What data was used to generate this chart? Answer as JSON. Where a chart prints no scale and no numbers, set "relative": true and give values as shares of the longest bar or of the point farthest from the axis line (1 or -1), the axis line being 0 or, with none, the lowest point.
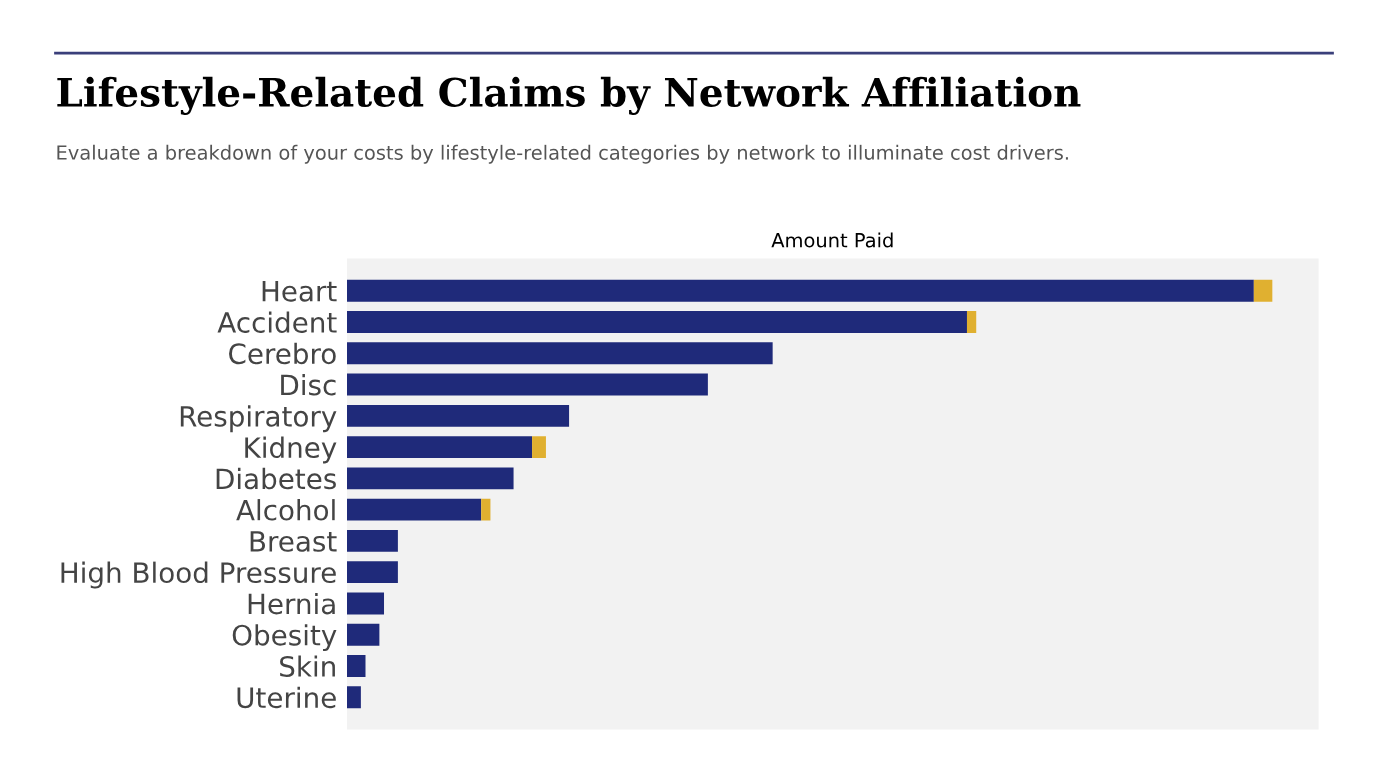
{
  "chart_data": {
    "type": "bar",
    "orientation": "horizontal",
    "stacked": true,
    "relative": true,
    "title": "Lifestyle-Related Claims by Network Affiliation",
    "subtitle": "Evaluate a breakdown of your costs by lifestyle-related categories by network to illuminate cost drivers.",
    "xlabel": "Amount Paid",
    "categories": [
      "Heart",
      "Accident",
      "Cerebro",
      "Disc",
      "Respiratory",
      "Kidney",
      "Diabetes",
      "Alcohol",
      "Breast",
      "High Blood Pressure",
      "Hernia",
      "Obesity",
      "Skin",
      "Uterine"
    ],
    "series": [
      {
        "color": "#1f2a7a",
        "values": [
          0.98,
          0.67,
          0.46,
          0.39,
          0.24,
          0.2,
          0.18,
          0.145,
          0.055,
          0.055,
          0.04,
          0.035,
          0.02,
          0.015
        ]
      },
      {
        "color": "#e0b030",
        "values": [
          0.02,
          0.01,
          null,
          null,
          null,
          0.015,
          null,
          0.01,
          null,
          null,
          null,
          null,
          null,
          null
        ]
      }
    ]
  }
}
